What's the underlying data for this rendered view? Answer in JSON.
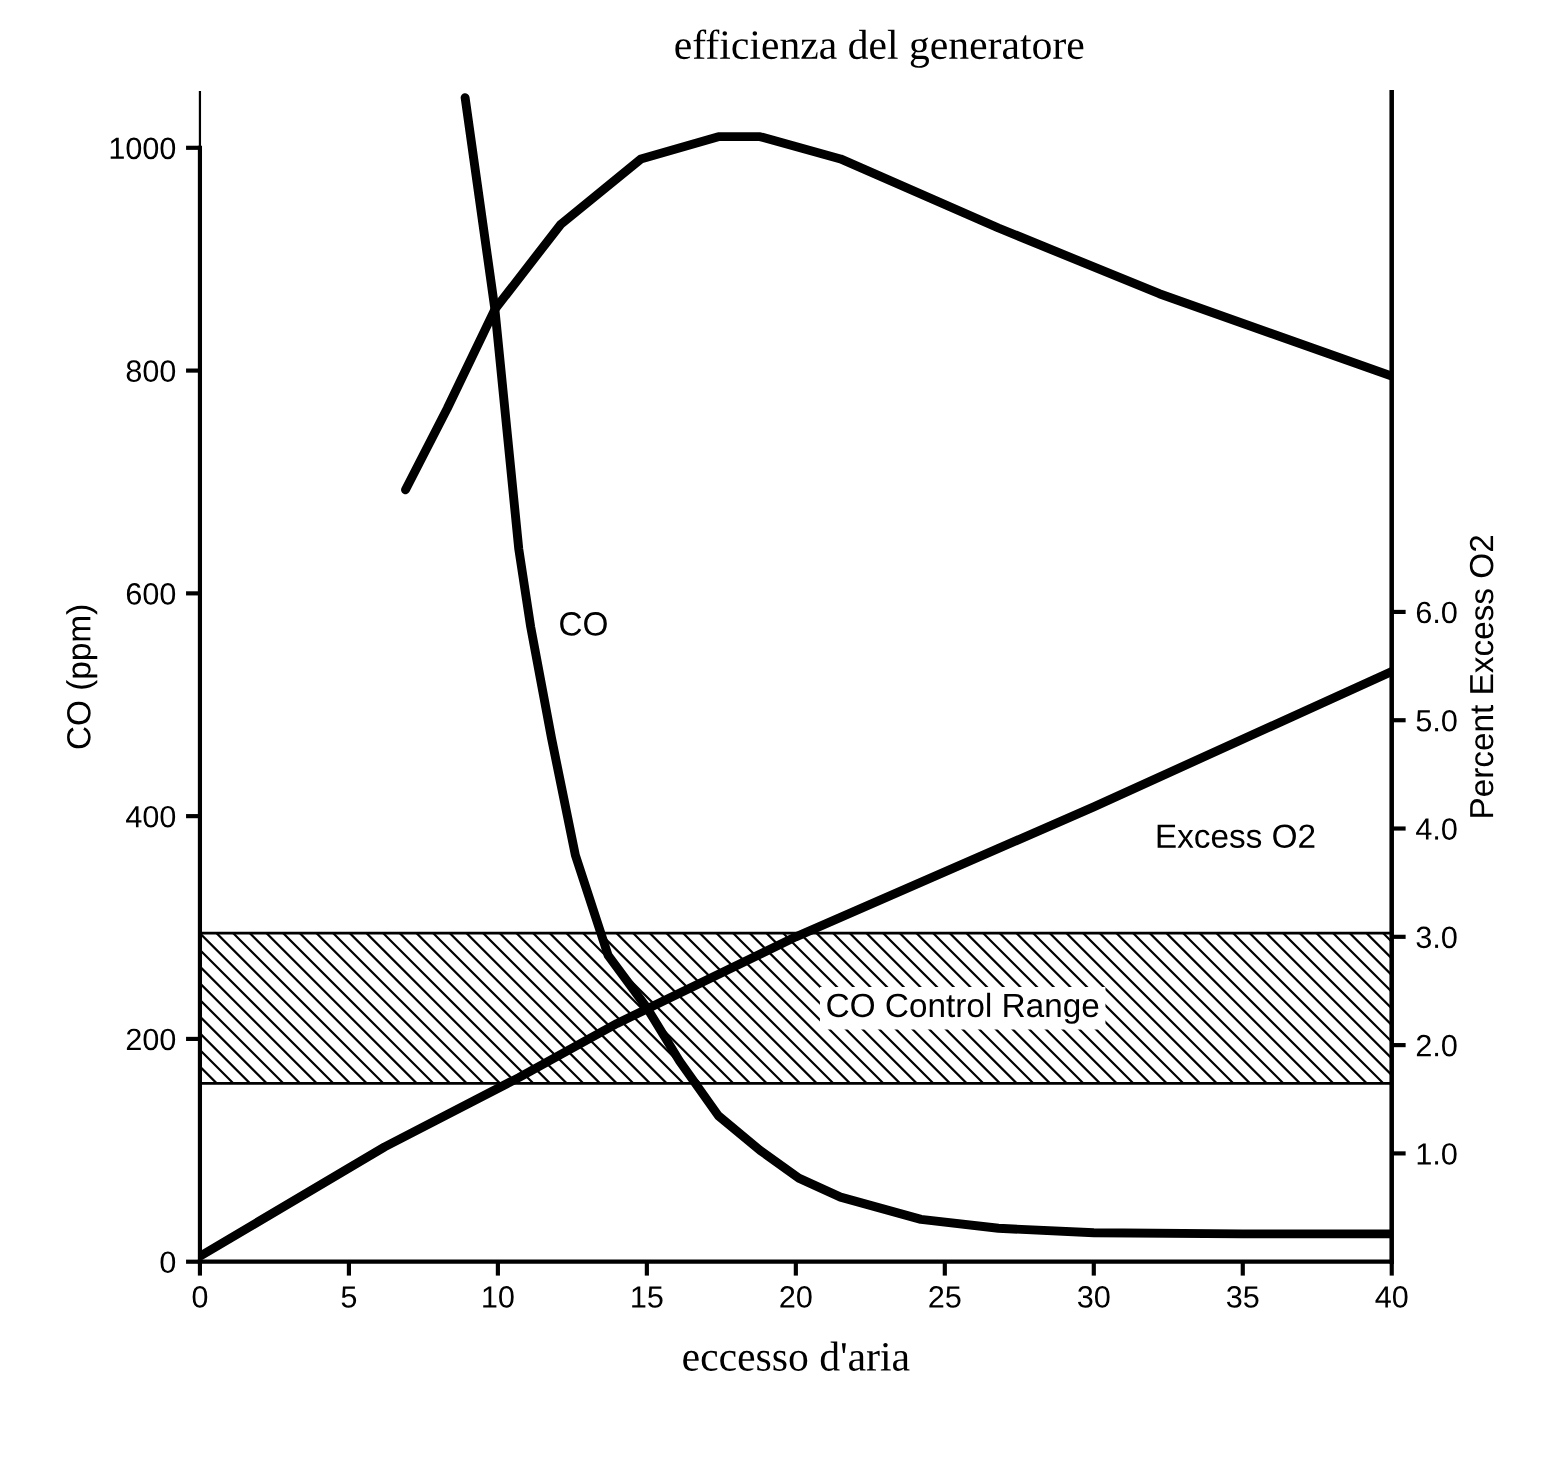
{
  "chart_data": {
    "type": "line",
    "title": "efficienza del generatore",
    "xlabel": "eccesso d'aria",
    "ylabel": "CO (ppm)",
    "y2label": "Percent Excess O2",
    "series": [
      {
        "name": "CO",
        "color": "#000000",
        "x": [
          8.9,
          9.9,
          10.7,
          11.1,
          11.8,
          12.6,
          13.7,
          15,
          16.1,
          17.4,
          18.8,
          20.1,
          21.5,
          24.2,
          26.8,
          30,
          35,
          40
        ],
        "values": [
          1045,
          855,
          640,
          570,
          470,
          365,
          275,
          228,
          180,
          131,
          100,
          75,
          58,
          38,
          30,
          26,
          25,
          25
        ]
      },
      {
        "color": "#000000",
        "x": [
          6.9,
          8.3,
          9.9,
          12.1,
          14.8,
          17.4,
          18.8,
          21.5,
          26.8,
          32.2,
          40
        ],
        "values": [
          693,
          766,
          855,
          931,
          990,
          1010,
          1010,
          990,
          928,
          869,
          795
        ]
      },
      {
        "name": "Excess O2",
        "color": "#000000",
        "axis": "y2",
        "x": [
          0,
          6.2,
          10.7,
          14,
          20,
          30,
          40
        ],
        "values": [
          0.05,
          1.06,
          1.7,
          2.2,
          3.0,
          4.2,
          5.45
        ]
      }
    ],
    "bands": [
      {
        "axis": "y",
        "from": 160,
        "to": 295,
        "label": "CO Control Range",
        "color": "#000000"
      }
    ],
    "xlim": [
      0,
      40
    ],
    "xticks": [
      0,
      5,
      10,
      15,
      20,
      25,
      30,
      35,
      40
    ],
    "ylim": [
      0,
      1050
    ],
    "yticks": [
      0,
      200,
      400,
      600,
      800,
      1000
    ],
    "y2lim": [
      0,
      10.8
    ],
    "y2ticks": [
      {
        "value": 1,
        "label": "1.0"
      },
      {
        "value": 2,
        "label": "2.0"
      },
      {
        "value": 3,
        "label": "3.0"
      },
      {
        "value": 4,
        "label": "4.0"
      },
      {
        "value": 5,
        "label": "5.0"
      },
      {
        "value": 6,
        "label": "6.0"
      }
    ],
    "grid": false,
    "legend": false,
    "marker": "none",
    "line_style": "solid"
  }
}
